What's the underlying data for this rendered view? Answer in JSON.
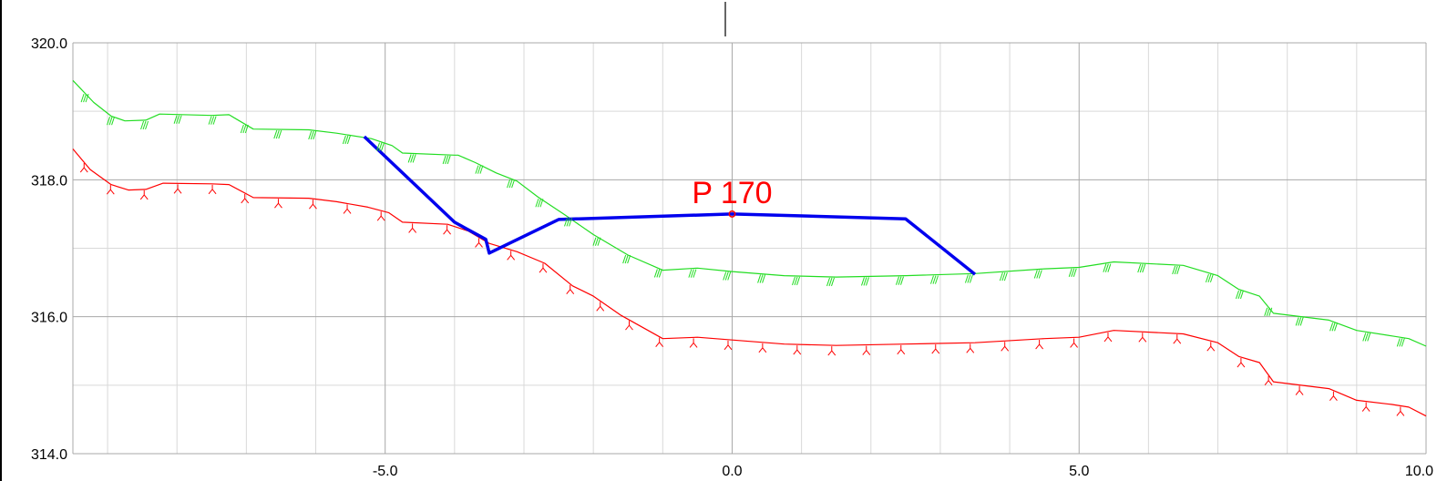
{
  "chart_data": {
    "type": "line",
    "title": "",
    "xlabel": "",
    "ylabel": "",
    "xlim": [
      -9.5,
      10.0
    ],
    "ylim": [
      314.0,
      320.0
    ],
    "grid": true,
    "x_ticks": [
      -5.0,
      0.0,
      5.0,
      10.0
    ],
    "x_tick_labels": [
      "-5.0",
      "0.0",
      "5.0",
      "10.0"
    ],
    "y_ticks": [
      314.0,
      316.0,
      318.0,
      320.0
    ],
    "y_tick_labels": [
      "314.0",
      "316.0",
      "318.0",
      "320.0"
    ],
    "annotation": {
      "text": "P 170",
      "x": 0.0,
      "y": 317.5
    },
    "series": [
      {
        "color": "#22dd22",
        "symbol": "hatch",
        "points": [
          [
            -9.5,
            319.45
          ],
          [
            -9.2,
            319.13
          ],
          [
            -8.95,
            318.93
          ],
          [
            -8.75,
            318.86
          ],
          [
            -8.45,
            318.87
          ],
          [
            -8.25,
            318.96
          ],
          [
            -7.5,
            318.94
          ],
          [
            -7.25,
            318.95
          ],
          [
            -6.9,
            318.74
          ],
          [
            -6.1,
            318.73
          ],
          [
            -5.7,
            318.68
          ],
          [
            -5.2,
            318.6
          ],
          [
            -4.9,
            318.5
          ],
          [
            -4.75,
            318.39
          ],
          [
            -4.0,
            318.36
          ],
          [
            -3.95,
            318.36
          ],
          [
            -3.7,
            318.25
          ],
          [
            -3.4,
            318.1
          ],
          [
            -3.1,
            317.98
          ],
          [
            -2.8,
            317.75
          ],
          [
            -2.4,
            317.48
          ],
          [
            -2.0,
            317.2
          ],
          [
            -1.5,
            316.9
          ],
          [
            -1.0,
            316.68
          ],
          [
            -0.5,
            316.71
          ],
          [
            0.0,
            316.66
          ],
          [
            0.75,
            316.6
          ],
          [
            1.5,
            316.58
          ],
          [
            2.5,
            316.6
          ],
          [
            3.5,
            316.63
          ],
          [
            4.5,
            316.7
          ],
          [
            5.0,
            316.72
          ],
          [
            5.5,
            316.8
          ],
          [
            6.5,
            316.75
          ],
          [
            7.0,
            316.6
          ],
          [
            7.3,
            316.4
          ],
          [
            7.6,
            316.3
          ],
          [
            7.8,
            316.05
          ],
          [
            8.6,
            315.95
          ],
          [
            9.0,
            315.8
          ],
          [
            9.5,
            315.72
          ],
          [
            9.75,
            315.68
          ],
          [
            10.0,
            315.57
          ]
        ]
      },
      {
        "color": "#ff0000",
        "symbol": "fork",
        "points": [
          [
            -9.5,
            318.45
          ],
          [
            -9.25,
            318.15
          ],
          [
            -8.95,
            317.93
          ],
          [
            -8.7,
            317.85
          ],
          [
            -8.45,
            317.86
          ],
          [
            -8.2,
            317.95
          ],
          [
            -7.5,
            317.94
          ],
          [
            -7.25,
            317.93
          ],
          [
            -6.9,
            317.74
          ],
          [
            -6.1,
            317.73
          ],
          [
            -5.7,
            317.68
          ],
          [
            -5.25,
            317.6
          ],
          [
            -4.95,
            317.52
          ],
          [
            -4.75,
            317.38
          ],
          [
            -4.1,
            317.35
          ],
          [
            -3.8,
            317.25
          ],
          [
            -3.5,
            317.07
          ],
          [
            -3.1,
            316.95
          ],
          [
            -2.7,
            316.78
          ],
          [
            -2.3,
            316.45
          ],
          [
            -2.0,
            316.3
          ],
          [
            -1.6,
            316.02
          ],
          [
            -1.0,
            315.68
          ],
          [
            -0.5,
            315.7
          ],
          [
            0.0,
            315.66
          ],
          [
            0.75,
            315.6
          ],
          [
            1.5,
            315.58
          ],
          [
            2.5,
            315.6
          ],
          [
            3.5,
            315.62
          ],
          [
            4.5,
            315.68
          ],
          [
            5.0,
            315.7
          ],
          [
            5.5,
            315.8
          ],
          [
            6.5,
            315.75
          ],
          [
            7.0,
            315.62
          ],
          [
            7.3,
            315.42
          ],
          [
            7.6,
            315.33
          ],
          [
            7.8,
            315.05
          ],
          [
            8.6,
            314.95
          ],
          [
            9.0,
            314.78
          ],
          [
            9.5,
            314.72
          ],
          [
            9.75,
            314.68
          ],
          [
            10.0,
            314.55
          ]
        ]
      },
      {
        "color": "#0000ee",
        "symbol": "none",
        "points": [
          [
            -5.3,
            318.63
          ],
          [
            -4.0,
            317.38
          ],
          [
            -3.55,
            317.13
          ],
          [
            -3.5,
            316.93
          ],
          [
            -2.5,
            317.42
          ],
          [
            0.0,
            317.5
          ],
          [
            2.5,
            317.43
          ],
          [
            3.5,
            316.62
          ]
        ]
      }
    ]
  }
}
